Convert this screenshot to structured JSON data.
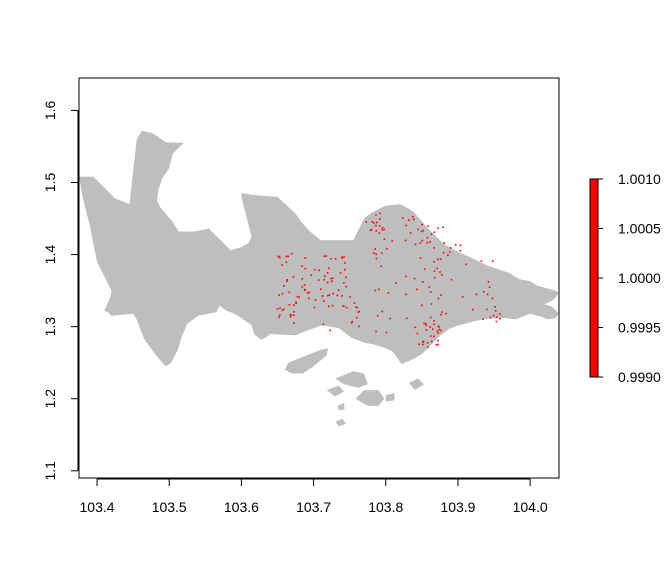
{
  "chart_data": {
    "type": "heatmap",
    "title": "",
    "xlabel": "",
    "ylabel": "",
    "xlim": [
      103.375,
      104.04
    ],
    "ylim": [
      1.09,
      1.645
    ],
    "x_ticks": [
      103.4,
      103.5,
      103.6,
      103.7,
      103.8,
      103.9,
      104.0
    ],
    "x_tick_labels": [
      "103.4",
      "103.5",
      "103.6",
      "103.7",
      "103.8",
      "103.9",
      "104.0"
    ],
    "y_ticks": [
      1.1,
      1.2,
      1.3,
      1.4,
      1.5,
      1.6
    ],
    "y_tick_labels": [
      "1.1",
      "1.2",
      "1.3",
      "1.4",
      "1.5",
      "1.6"
    ],
    "land_color": "#bebebe",
    "point_color": "#ff0000",
    "legend": {
      "placement": "right",
      "min": 0.999,
      "max": 1.001,
      "ticks": [
        0.999,
        0.9995,
        1.0,
        1.0005,
        1.001
      ],
      "tick_labels": [
        "0.9990",
        "0.9995",
        "1.0000",
        "1.0005",
        "1.0010"
      ],
      "color": "#ff0000"
    },
    "land_polygons": [
      [
        [
          103.375,
          1.508
        ],
        [
          103.395,
          1.508
        ],
        [
          103.425,
          1.478
        ],
        [
          103.445,
          1.47
        ],
        [
          103.455,
          1.56
        ],
        [
          103.462,
          1.572
        ],
        [
          103.478,
          1.568
        ],
        [
          103.495,
          1.556
        ],
        [
          103.52,
          1.555
        ],
        [
          103.505,
          1.54
        ],
        [
          103.5,
          1.52
        ],
        [
          103.49,
          1.505
        ],
        [
          103.485,
          1.49
        ],
        [
          103.483,
          1.475
        ],
        [
          103.488,
          1.465
        ],
        [
          103.505,
          1.445
        ],
        [
          103.513,
          1.432
        ],
        [
          103.535,
          1.432
        ],
        [
          103.545,
          1.434
        ],
        [
          103.555,
          1.436
        ],
        [
          103.575,
          1.416
        ],
        [
          103.585,
          1.406
        ],
        [
          103.599,
          1.41
        ],
        [
          103.61,
          1.416
        ],
        [
          103.614,
          1.425
        ],
        [
          103.6,
          1.48
        ],
        [
          103.6,
          1.485
        ],
        [
          103.615,
          1.483
        ],
        [
          103.65,
          1.48
        ],
        [
          103.675,
          1.457
        ],
        [
          103.683,
          1.445
        ],
        [
          103.695,
          1.432
        ],
        [
          103.71,
          1.42
        ],
        [
          103.755,
          1.42
        ],
        [
          103.77,
          1.45
        ],
        [
          103.78,
          1.458
        ],
        [
          103.8,
          1.468
        ],
        [
          103.82,
          1.47
        ],
        [
          103.838,
          1.46
        ],
        [
          103.855,
          1.44
        ],
        [
          103.865,
          1.43
        ],
        [
          103.88,
          1.415
        ],
        [
          103.9,
          1.404
        ],
        [
          103.92,
          1.395
        ],
        [
          103.94,
          1.385
        ],
        [
          103.955,
          1.38
        ],
        [
          103.97,
          1.375
        ],
        [
          103.985,
          1.366
        ],
        [
          104.0,
          1.363
        ],
        [
          104.01,
          1.357
        ],
        [
          104.035,
          1.35
        ],
        [
          104.04,
          1.347
        ],
        [
          104.035,
          1.34
        ],
        [
          104.03,
          1.336
        ],
        [
          104.02,
          1.331
        ],
        [
          104.03,
          1.328
        ],
        [
          104.04,
          1.318
        ],
        [
          104.035,
          1.312
        ],
        [
          104.025,
          1.31
        ],
        [
          104.015,
          1.314
        ],
        [
          104.0,
          1.318
        ],
        [
          103.98,
          1.31
        ],
        [
          103.965,
          1.312
        ],
        [
          103.94,
          1.311
        ],
        [
          103.925,
          1.308
        ],
        [
          103.905,
          1.303
        ],
        [
          103.888,
          1.297
        ],
        [
          103.875,
          1.287
        ],
        [
          103.863,
          1.275
        ],
        [
          103.85,
          1.262
        ],
        [
          103.838,
          1.255
        ],
        [
          103.822,
          1.248
        ],
        [
          103.81,
          1.265
        ],
        [
          103.8,
          1.27
        ],
        [
          103.785,
          1.275
        ],
        [
          103.77,
          1.278
        ],
        [
          103.752,
          1.285
        ],
        [
          103.735,
          1.298
        ],
        [
          103.712,
          1.302
        ],
        [
          103.695,
          1.296
        ],
        [
          103.675,
          1.288
        ],
        [
          103.655,
          1.289
        ],
        [
          103.64,
          1.29
        ],
        [
          103.634,
          1.285
        ],
        [
          103.627,
          1.282
        ],
        [
          103.618,
          1.289
        ],
        [
          103.614,
          1.302
        ],
        [
          103.6,
          1.312
        ],
        [
          103.59,
          1.318
        ],
        [
          103.578,
          1.323
        ],
        [
          103.57,
          1.329
        ],
        [
          103.565,
          1.32
        ],
        [
          103.54,
          1.315
        ],
        [
          103.525,
          1.304
        ],
        [
          103.518,
          1.288
        ],
        [
          103.512,
          1.268
        ],
        [
          103.502,
          1.249
        ],
        [
          103.495,
          1.245
        ],
        [
          103.482,
          1.26
        ],
        [
          103.465,
          1.283
        ],
        [
          103.455,
          1.31
        ],
        [
          103.45,
          1.318
        ],
        [
          103.44,
          1.317
        ],
        [
          103.42,
          1.315
        ],
        [
          103.415,
          1.32
        ],
        [
          103.41,
          1.322
        ],
        [
          103.418,
          1.34
        ],
        [
          103.42,
          1.35
        ],
        [
          103.4,
          1.39
        ],
        [
          103.39,
          1.44
        ],
        [
          103.38,
          1.48
        ],
        [
          103.375,
          1.508
        ]
      ],
      [
        [
          103.665,
          1.25
        ],
        [
          103.695,
          1.262
        ],
        [
          103.71,
          1.268
        ],
        [
          103.72,
          1.27
        ],
        [
          103.718,
          1.26
        ],
        [
          103.7,
          1.245
        ],
        [
          103.685,
          1.235
        ],
        [
          103.67,
          1.235
        ],
        [
          103.66,
          1.24
        ],
        [
          103.665,
          1.25
        ]
      ],
      [
        [
          103.73,
          1.228
        ],
        [
          103.755,
          1.238
        ],
        [
          103.77,
          1.235
        ],
        [
          103.775,
          1.22
        ],
        [
          103.762,
          1.215
        ],
        [
          103.742,
          1.22
        ],
        [
          103.73,
          1.228
        ]
      ],
      [
        [
          103.758,
          1.2
        ],
        [
          103.77,
          1.212
        ],
        [
          103.79,
          1.212
        ],
        [
          103.798,
          1.2
        ],
        [
          103.79,
          1.19
        ],
        [
          103.775,
          1.19
        ],
        [
          103.758,
          1.2
        ]
      ],
      [
        [
          103.718,
          1.212
        ],
        [
          103.735,
          1.218
        ],
        [
          103.742,
          1.21
        ],
        [
          103.73,
          1.203
        ],
        [
          103.718,
          1.212
        ]
      ],
      [
        [
          103.733,
          1.19
        ],
        [
          103.742,
          1.194
        ],
        [
          103.743,
          1.185
        ],
        [
          103.735,
          1.184
        ],
        [
          103.733,
          1.19
        ]
      ],
      [
        [
          103.8,
          1.205
        ],
        [
          103.812,
          1.208
        ],
        [
          103.812,
          1.198
        ],
        [
          103.8,
          1.196
        ],
        [
          103.8,
          1.205
        ]
      ],
      [
        [
          103.832,
          1.222
        ],
        [
          103.845,
          1.228
        ],
        [
          103.853,
          1.22
        ],
        [
          103.84,
          1.212
        ],
        [
          103.832,
          1.222
        ]
      ],
      [
        [
          103.73,
          1.168
        ],
        [
          103.74,
          1.172
        ],
        [
          103.745,
          1.165
        ],
        [
          103.735,
          1.162
        ],
        [
          103.73,
          1.168
        ]
      ]
    ]
  }
}
